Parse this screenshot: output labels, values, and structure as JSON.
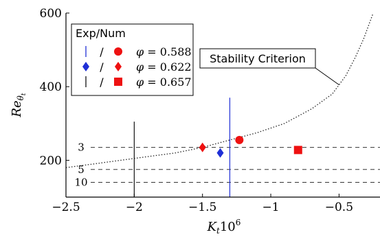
{
  "chart_data": {
    "type": "scatter",
    "xlabel_base": "K",
    "xlabel_sub": "t",
    "xlabel_tail": "10",
    "xlabel_sup": "6",
    "ylabel_base": "Re",
    "ylabel_sub": "θ",
    "ylabel_subsub": "t",
    "xlim": [
      -2.5,
      -0.2
    ],
    "ylim": [
      100,
      600
    ],
    "x_ticks": [
      -2.5,
      -2,
      -1.5,
      -1,
      -0.5
    ],
    "x_tick_labels": [
      "−2.5",
      "−2",
      "−1.5",
      "−1",
      "−0.5"
    ],
    "y_ticks": [
      200,
      400,
      600
    ],
    "y_tick_labels": [
      "200",
      "400",
      "600"
    ],
    "grid": false,
    "legend": {
      "title": "Exp/Num",
      "sep": "/",
      "phi_symbol": "φ",
      "entries": [
        {
          "phi": "0.588",
          "exp_marker": "line",
          "num_marker": "circle",
          "exp_color": "#1f2fd6",
          "num_color": "#ee1111"
        },
        {
          "phi": "0.622",
          "exp_marker": "diamond",
          "num_marker": "diamond",
          "exp_color": "#1f2fd6",
          "num_color": "#ee1111"
        },
        {
          "phi": "0.657",
          "exp_marker": "line",
          "num_marker": "square",
          "exp_color": "#111111",
          "num_color": "#ee1111"
        }
      ]
    },
    "experimental": [
      {
        "series": "0.622",
        "x": -1.37,
        "y": 220,
        "marker": "diamond",
        "color": "#1f2fd6"
      }
    ],
    "numerical": [
      {
        "series": "0.588",
        "x": -1.23,
        "y": 255,
        "marker": "circle",
        "color": "#ee1111"
      },
      {
        "series": "0.622",
        "x": -1.5,
        "y": 235,
        "marker": "diamond",
        "color": "#ee1111"
      },
      {
        "series": "0.657",
        "x": -0.8,
        "y": 228,
        "marker": "square",
        "color": "#ee1111"
      }
    ],
    "vertical_lines": [
      {
        "series": "0.588",
        "x": -1.3,
        "y_range": [
          100,
          370
        ],
        "color": "#1f2fd6"
      },
      {
        "series": "0.657",
        "x": -2.0,
        "y_range": [
          100,
          305
        ],
        "color": "#111111"
      }
    ],
    "horizontal_levels": [
      {
        "label": "3",
        "y": 235
      },
      {
        "label": "5",
        "y": 175
      },
      {
        "label": "10",
        "y": 140
      }
    ],
    "stability_curve": {
      "label": "Stability Criterion",
      "style": "dotted",
      "points": [
        [
          -2.5,
          180
        ],
        [
          -2.3,
          190
        ],
        [
          -2.1,
          200
        ],
        [
          -1.9,
          210
        ],
        [
          -1.7,
          220
        ],
        [
          -1.5,
          235
        ],
        [
          -1.3,
          255
        ],
        [
          -1.1,
          275
        ],
        [
          -0.9,
          300
        ],
        [
          -0.7,
          340
        ],
        [
          -0.55,
          380
        ],
        [
          -0.45,
          430
        ],
        [
          -0.38,
          480
        ],
        [
          -0.32,
          530
        ],
        [
          -0.28,
          570
        ],
        [
          -0.25,
          600
        ]
      ],
      "annotation_point": [
        -0.5,
        405
      ]
    }
  }
}
